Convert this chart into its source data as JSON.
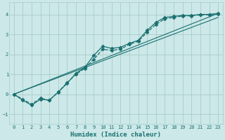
{
  "xlabel": "Humidex (Indice chaleur)",
  "bg_color": "#cce8e8",
  "grid_color": "#aacccc",
  "line_color": "#1a7070",
  "xlim": [
    -0.5,
    23.5
  ],
  "ylim": [
    -1.5,
    4.6
  ],
  "xticks": [
    0,
    1,
    2,
    3,
    4,
    5,
    6,
    7,
    8,
    9,
    10,
    11,
    12,
    13,
    14,
    15,
    16,
    17,
    18,
    19,
    20,
    21,
    22,
    23
  ],
  "yticks": [
    -1,
    0,
    1,
    2,
    3,
    4
  ],
  "lines": [
    {
      "x": [
        0,
        1,
        2,
        3,
        4,
        5,
        6,
        7,
        8,
        9,
        10,
        11,
        12,
        13,
        14,
        15,
        16,
        17,
        18,
        19,
        20,
        21,
        22,
        23
      ],
      "y": [
        0.0,
        -0.3,
        -0.55,
        -0.25,
        -0.3,
        0.1,
        0.55,
        1.05,
        1.35,
        1.95,
        2.4,
        2.3,
        2.35,
        2.55,
        2.7,
        3.2,
        3.6,
        3.85,
        3.9,
        3.95,
        3.95,
        4.0,
        4.0,
        4.05
      ],
      "linestyle": "-",
      "marker": "D",
      "markersize": 2.5,
      "linewidth": 0.9
    },
    {
      "x": [
        0,
        1,
        2,
        3,
        4,
        5,
        6,
        7,
        8,
        9,
        10,
        11,
        12,
        13,
        14,
        15,
        16,
        17,
        18,
        19,
        20,
        21,
        22,
        23
      ],
      "y": [
        0.0,
        -0.25,
        -0.5,
        -0.2,
        -0.3,
        0.12,
        0.58,
        1.0,
        1.3,
        1.75,
        2.25,
        2.2,
        2.25,
        2.5,
        2.65,
        3.1,
        3.5,
        3.78,
        3.85,
        3.92,
        3.93,
        3.98,
        3.98,
        4.02
      ],
      "linestyle": "--",
      "marker": "D",
      "markersize": 2.5,
      "linewidth": 0.9
    },
    {
      "x": [
        0,
        23
      ],
      "y": [
        0.0,
        4.05
      ],
      "linestyle": "-",
      "marker": null,
      "markersize": 0,
      "linewidth": 0.8
    },
    {
      "x": [
        0,
        23
      ],
      "y": [
        0.0,
        3.85
      ],
      "linestyle": "-",
      "marker": null,
      "markersize": 0,
      "linewidth": 0.8
    }
  ]
}
